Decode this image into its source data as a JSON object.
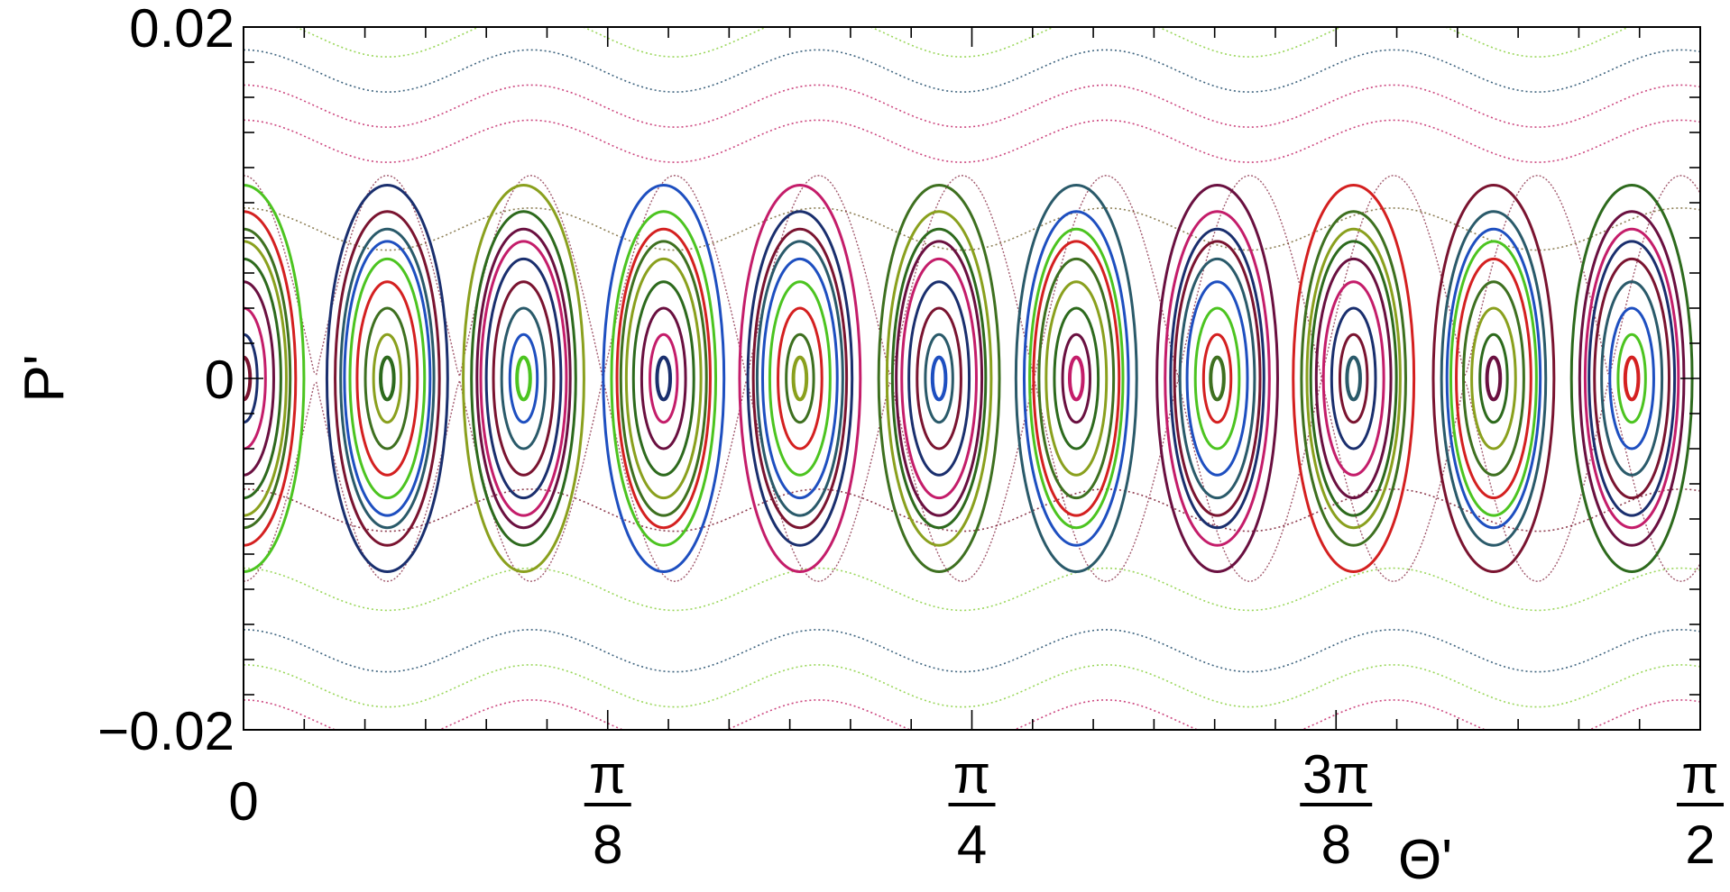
{
  "chart_data": {
    "type": "scatter",
    "title": "",
    "xlabel": "Θ'",
    "ylabel": "P'",
    "xlim": [
      0,
      1.5708
    ],
    "ylim": [
      -0.02,
      0.02
    ],
    "x_ticks": [
      {
        "value": 0,
        "num": "0",
        "den": ""
      },
      {
        "value": 0.3927,
        "num": "π",
        "den": "8"
      },
      {
        "value": 0.7854,
        "num": "π",
        "den": "4"
      },
      {
        "value": 1.1781,
        "num": "3π",
        "den": "8"
      },
      {
        "value": 1.5708,
        "num": "π",
        "den": "2"
      }
    ],
    "y_ticks": [
      {
        "value": 0.02,
        "label": "0.02"
      },
      {
        "value": 0,
        "label": "0"
      },
      {
        "value": -0.02,
        "label": "−0.02"
      }
    ],
    "grid": false,
    "islands": {
      "x": [
        0.0,
        0.155,
        0.302,
        0.453,
        0.6,
        0.75,
        0.898,
        1.05,
        1.197,
        1.348,
        1.497
      ],
      "orbit_half_heights": [
        0.0012,
        0.0025,
        0.004,
        0.0055,
        0.0068,
        0.0078,
        0.0085,
        0.0095,
        0.011
      ],
      "colors": [
        "#7a1430",
        "#2d6a1d",
        "#4cc420",
        "#1a2f6e",
        "#8aa01e",
        "#1e4fc0",
        "#c41d6a",
        "#3e7020",
        "#2a5a6a",
        "#6a1040",
        "#d42020"
      ]
    },
    "rotational_orbits": {
      "mean_p": [
        0.0195,
        0.0175,
        0.0155,
        0.0135,
        0.0085,
        -0.0075,
        -0.012,
        -0.0155,
        -0.0175,
        -0.0195
      ],
      "amplitude": 0.0012,
      "colors": [
        "#8ad040",
        "#1e4a6a",
        "#c4286a",
        "#c4286a",
        "#7a6a3a",
        "#7a1a30",
        "#8ad040",
        "#1e4a6a",
        "#8ad040",
        "#c4286a"
      ]
    }
  }
}
